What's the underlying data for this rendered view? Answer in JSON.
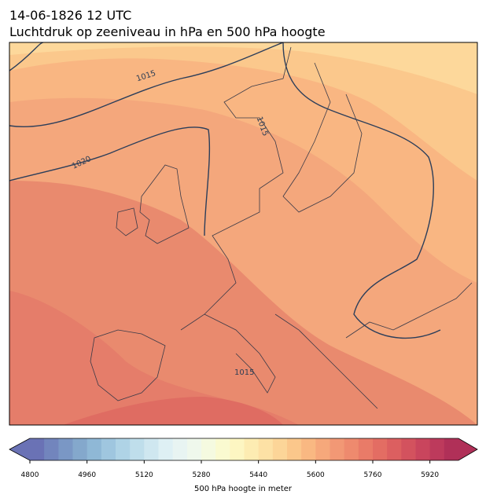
{
  "header": {
    "date": "14-06-1826 12 UTC",
    "title": "Luchtdruk op zeeniveau in hPa en 500 hPa hoogte"
  },
  "map": {
    "contour_labels": [
      "1015",
      "1020",
      "1015",
      "1015"
    ]
  },
  "colorbar": {
    "lim": [
      4800,
      6000
    ],
    "ticks": [
      4800,
      4960,
      5120,
      5280,
      5440,
      5600,
      5760,
      5920
    ],
    "colors": [
      "#6a72b5",
      "#7285bd",
      "#7a97c5",
      "#84a8cc",
      "#8fb8d6",
      "#9fc6df",
      "#afd3e6",
      "#bfdeeb",
      "#cfe7f0",
      "#def0f4",
      "#e8f4f2",
      "#eff8ec",
      "#f5fae0",
      "#fafad0",
      "#fdf6c2",
      "#fdecb2",
      "#fde1a5",
      "#fcd598",
      "#fbc78b",
      "#f9b882",
      "#f6a87b",
      "#f29875",
      "#ee8a6e",
      "#e97b68",
      "#e36d63",
      "#dc5f60",
      "#d3525e",
      "#c9455d",
      "#bd3a5c",
      "#b03058"
    ],
    "label": "500 hPa hoogte in meter"
  }
}
